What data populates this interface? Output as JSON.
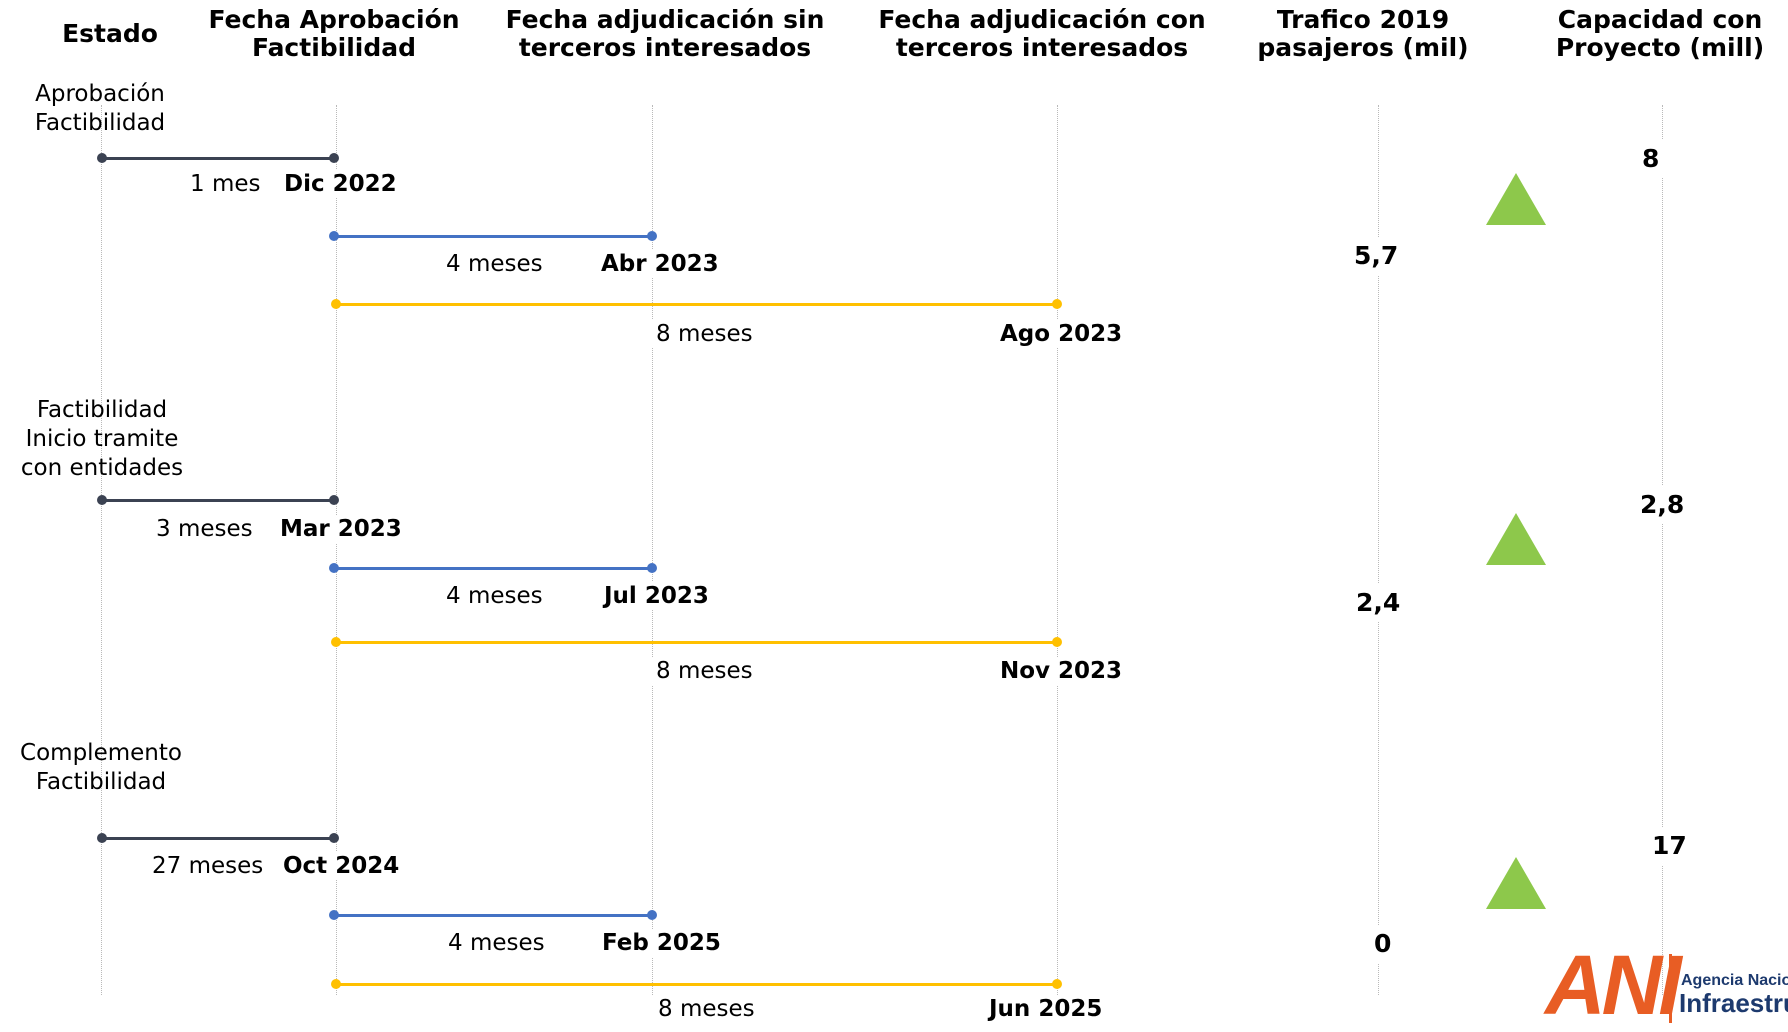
{
  "headers": {
    "estado": [
      "Estado"
    ],
    "aprobacion": [
      "Fecha Aprobación",
      "Factibilidad"
    ],
    "sin_terceros": [
      "Fecha adjudicación sin",
      "terceros interesados"
    ],
    "con_terceros": [
      "Fecha adjudicación con",
      "terceros interesados"
    ],
    "trafico": [
      "Trafico 2019",
      "pasajeros (mil)"
    ],
    "capacidad": [
      "Capacidad con",
      "Proyecto  (mill)"
    ]
  },
  "colors": {
    "approval_line": "#3b4252",
    "sin_terceros_line": "#4472c4",
    "con_terceros_line": "#ffc000",
    "triangle": "#8dc84b",
    "logo_orange": "#e85d24",
    "logo_navy": "#1d3a6e"
  },
  "rows": [
    {
      "estado": [
        "Aprobación",
        "Factibilidad"
      ],
      "approval": {
        "duration": "1 mes",
        "date": "Dic 2022"
      },
      "sin_terceros": {
        "duration": "4 meses",
        "date": "Abr 2023"
      },
      "con_terceros": {
        "duration": "8 meses",
        "date": "Ago 2023"
      },
      "trafico": "5,7",
      "capacidad": "8",
      "trend_icon": "triangle-up-icon"
    },
    {
      "estado": [
        "Factibilidad",
        "Inicio tramite",
        "con entidades"
      ],
      "approval": {
        "duration": "3 meses",
        "date": "Mar 2023"
      },
      "sin_terceros": {
        "duration": "4 meses",
        "date": "Jul 2023"
      },
      "con_terceros": {
        "duration": "8 meses",
        "date": "Nov 2023"
      },
      "trafico": "2,4",
      "capacidad": "2,8",
      "trend_icon": "triangle-up-icon"
    },
    {
      "estado": [
        "Complemento",
        "Factibilidad"
      ],
      "approval": {
        "duration": "27 meses",
        "date": "Oct 2024"
      },
      "sin_terceros": {
        "duration": "4 meses",
        "date": "Feb 2025"
      },
      "con_terceros": {
        "duration": "8 meses",
        "date": "Jun 2025"
      },
      "trafico": "0",
      "capacidad": "17",
      "trend_icon": "triangle-up-icon"
    }
  ],
  "logo": {
    "mark": "ANI",
    "line1": "Agencia Nacional de",
    "line2": "Infraestructura",
    "icon": "ani-logo"
  }
}
